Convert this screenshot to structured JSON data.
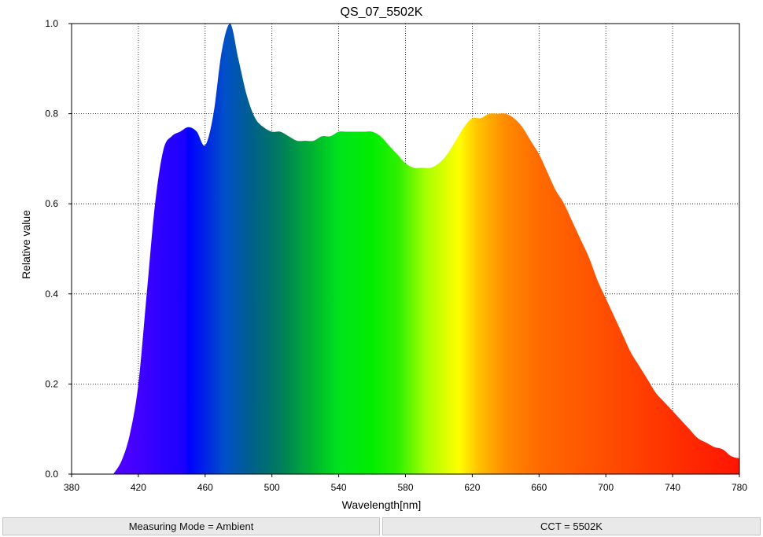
{
  "chart_data": {
    "type": "area",
    "title": "QS_07_5502K",
    "xlabel": "Wavelength[nm]",
    "ylabel": "Relative value",
    "xlim": [
      380,
      780
    ],
    "ylim": [
      0,
      1.0
    ],
    "grid": true,
    "x_ticks": [
      380,
      420,
      460,
      500,
      540,
      580,
      620,
      660,
      700,
      740,
      780
    ],
    "y_ticks": [
      0.0,
      0.2,
      0.4,
      0.6,
      0.8,
      1.0
    ],
    "x_tick_labels": [
      "380",
      "420",
      "460",
      "500",
      "540",
      "580",
      "620",
      "660",
      "700",
      "740",
      "780"
    ],
    "y_tick_labels": [
      "0.0",
      "0.2",
      "0.4",
      "0.6",
      "0.8",
      "1.0"
    ],
    "fill": "visible-spectrum gradient",
    "x": [
      405,
      410,
      415,
      420,
      425,
      430,
      435,
      440,
      445,
      450,
      455,
      460,
      465,
      470,
      475,
      480,
      485,
      490,
      495,
      500,
      505,
      510,
      515,
      520,
      525,
      530,
      535,
      540,
      545,
      550,
      555,
      560,
      565,
      570,
      575,
      580,
      585,
      590,
      595,
      600,
      605,
      610,
      615,
      620,
      625,
      630,
      635,
      640,
      645,
      650,
      655,
      660,
      665,
      670,
      675,
      680,
      685,
      690,
      695,
      700,
      705,
      710,
      715,
      720,
      725,
      730,
      735,
      740,
      745,
      750,
      755,
      760,
      765,
      770,
      775,
      780
    ],
    "y": [
      0.0,
      0.03,
      0.09,
      0.2,
      0.4,
      0.6,
      0.72,
      0.75,
      0.76,
      0.77,
      0.76,
      0.73,
      0.8,
      0.94,
      1.0,
      0.92,
      0.84,
      0.79,
      0.77,
      0.76,
      0.76,
      0.75,
      0.74,
      0.74,
      0.74,
      0.75,
      0.75,
      0.76,
      0.76,
      0.76,
      0.76,
      0.76,
      0.75,
      0.73,
      0.71,
      0.69,
      0.68,
      0.68,
      0.68,
      0.69,
      0.71,
      0.74,
      0.77,
      0.79,
      0.79,
      0.8,
      0.8,
      0.8,
      0.79,
      0.77,
      0.74,
      0.71,
      0.67,
      0.63,
      0.6,
      0.56,
      0.52,
      0.48,
      0.43,
      0.39,
      0.35,
      0.31,
      0.27,
      0.24,
      0.21,
      0.18,
      0.16,
      0.14,
      0.12,
      0.1,
      0.08,
      0.07,
      0.06,
      0.055,
      0.04,
      0.035
    ]
  },
  "footer": {
    "measuring_mode": "Measuring Mode = Ambient",
    "cct": "CCT = 5502K"
  }
}
